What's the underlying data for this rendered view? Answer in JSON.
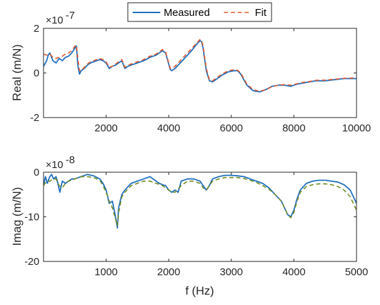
{
  "legend": {
    "measured_label": "Measured",
    "fit_label": "Fit",
    "placement": "top-center"
  },
  "colors": {
    "measured": "#1f6fbf",
    "fit": "#e4572e",
    "fit_imag": "#6f8a1f",
    "axis": "#262626"
  },
  "chart_data": [
    {
      "type": "line",
      "xlabel": "",
      "ylabel": "Real (m/N)",
      "exponent_prefix": "×10",
      "exponent": "-7",
      "xlim": [
        0,
        10000
      ],
      "ylim": [
        -2,
        2
      ],
      "xticks": [
        "2000",
        "4000",
        "6000",
        "8000",
        "10000"
      ],
      "xtick_values": [
        2000,
        4000,
        6000,
        8000,
        10000
      ],
      "yticks": [
        "-2",
        "0",
        "2"
      ],
      "ytick_values": [
        -2,
        0,
        2
      ],
      "grid": false,
      "series": [
        {
          "name": "Measured",
          "style": "solid",
          "x": [
            0,
            100,
            150,
            200,
            300,
            400,
            500,
            600,
            700,
            800,
            900,
            1000,
            1050,
            1100,
            1150,
            1200,
            1300,
            1400,
            1500,
            1600,
            1700,
            1800,
            1900,
            2000,
            2100,
            2200,
            2300,
            2400,
            2500,
            2600,
            2700,
            2800,
            3000,
            3200,
            3400,
            3600,
            3800,
            3900,
            4000,
            4050,
            4100,
            4200,
            4300,
            4500,
            4700,
            4900,
            5000,
            5050,
            5100,
            5150,
            5200,
            5300,
            5400,
            5500,
            5700,
            5900,
            6100,
            6200,
            6300,
            6400,
            6500,
            6700,
            6900,
            7100,
            7300,
            7500,
            7700,
            7900,
            8000,
            8100,
            8300,
            8500,
            8700,
            9000,
            9300,
            9600,
            10000
          ],
          "y": [
            0.3,
            0.55,
            0.8,
            0.9,
            0.55,
            0.45,
            0.65,
            0.55,
            0.7,
            0.75,
            0.9,
            1.1,
            1.2,
            0.3,
            -0.05,
            0.1,
            0.2,
            0.35,
            0.45,
            0.5,
            0.55,
            0.6,
            0.55,
            0.45,
            0.2,
            0.3,
            0.35,
            0.45,
            0.55,
            0.2,
            0.3,
            0.35,
            0.45,
            0.55,
            0.7,
            0.8,
            1.0,
            0.9,
            0.4,
            0.15,
            0.1,
            0.2,
            0.35,
            0.65,
            0.95,
            1.3,
            1.45,
            1.4,
            1.1,
            0.6,
            0.1,
            -0.35,
            -0.4,
            -0.3,
            -0.1,
            0.05,
            0.1,
            0.1,
            -0.05,
            -0.3,
            -0.55,
            -0.8,
            -0.85,
            -0.75,
            -0.6,
            -0.55,
            -0.55,
            -0.6,
            -0.55,
            -0.5,
            -0.45,
            -0.4,
            -0.35,
            -0.35,
            -0.3,
            -0.25,
            -0.25
          ]
        },
        {
          "name": "Fit",
          "style": "dashed",
          "x": [
            0,
            100,
            200,
            300,
            400,
            500,
            600,
            700,
            800,
            900,
            1000,
            1050,
            1100,
            1150,
            1200,
            1300,
            1400,
            1500,
            1600,
            1700,
            1800,
            1900,
            2000,
            2100,
            2200,
            2300,
            2400,
            2500,
            2600,
            2700,
            2800,
            3000,
            3200,
            3400,
            3600,
            3800,
            3900,
            4000,
            4050,
            4100,
            4200,
            4300,
            4500,
            4700,
            4900,
            5000,
            5050,
            5100,
            5150,
            5200,
            5300,
            5400,
            5500,
            5700,
            5900,
            6100,
            6200,
            6300,
            6400,
            6500,
            6700,
            6900,
            7100,
            7300,
            7500,
            7700,
            7900,
            8000,
            8100,
            8300,
            8500,
            8700,
            9000,
            9300,
            9600,
            10000
          ],
          "y": [
            0.85,
            0.8,
            0.85,
            0.7,
            0.65,
            0.7,
            0.75,
            0.85,
            0.9,
            1.0,
            1.2,
            1.25,
            0.6,
            0.1,
            0.1,
            0.25,
            0.4,
            0.5,
            0.55,
            0.6,
            0.65,
            0.6,
            0.5,
            0.25,
            0.3,
            0.4,
            0.5,
            0.6,
            0.25,
            0.35,
            0.4,
            0.5,
            0.6,
            0.75,
            0.85,
            1.05,
            0.95,
            0.45,
            0.2,
            0.2,
            0.3,
            0.45,
            0.75,
            1.05,
            1.35,
            1.5,
            1.45,
            1.2,
            0.7,
            0.2,
            -0.3,
            -0.35,
            -0.25,
            -0.05,
            0.1,
            0.15,
            0.12,
            0.0,
            -0.25,
            -0.5,
            -0.75,
            -0.82,
            -0.75,
            -0.62,
            -0.55,
            -0.52,
            -0.55,
            -0.52,
            -0.48,
            -0.42,
            -0.38,
            -0.33,
            -0.32,
            -0.28,
            -0.24,
            -0.22
          ]
        }
      ]
    },
    {
      "type": "line",
      "xlabel": "f (Hz)",
      "ylabel": "Imag (m/N)",
      "exponent_prefix": "×10",
      "exponent": "-8",
      "xlim": [
        0,
        5000
      ],
      "ylim": [
        -20,
        0
      ],
      "xticks": [
        "1000",
        "2000",
        "3000",
        "4000",
        "5000"
      ],
      "xtick_values": [
        1000,
        2000,
        3000,
        4000,
        5000
      ],
      "yticks": [
        "-20",
        "-10",
        "0"
      ],
      "ytick_values": [
        -20,
        -10,
        0
      ],
      "grid": false,
      "series": [
        {
          "name": "Measured",
          "style": "solid",
          "x": [
            0,
            30,
            60,
            100,
            130,
            160,
            200,
            230,
            260,
            300,
            350,
            400,
            450,
            500,
            600,
            700,
            800,
            900,
            950,
            1000,
            1050,
            1100,
            1150,
            1180,
            1200,
            1250,
            1300,
            1400,
            1500,
            1600,
            1700,
            1750,
            1800,
            1850,
            1900,
            1950,
            2000,
            2050,
            2100,
            2150,
            2200,
            2300,
            2400,
            2500,
            2550,
            2600,
            2650,
            2700,
            2800,
            2900,
            3000,
            3100,
            3200,
            3300,
            3400,
            3500,
            3600,
            3700,
            3800,
            3850,
            3900,
            3950,
            4000,
            4050,
            4100,
            4200,
            4300,
            4400,
            4500,
            4600,
            4700,
            4800,
            4900,
            5000
          ],
          "y": [
            -3,
            -1,
            -2.5,
            -1,
            -0.5,
            -1.5,
            -1,
            -2.5,
            -4.5,
            -2,
            -2.5,
            -2,
            -1.5,
            -1.5,
            -1,
            -0.5,
            -0.8,
            -1.5,
            -2.5,
            -4,
            -7,
            -6.5,
            -10,
            -12.5,
            -8,
            -5,
            -4,
            -2.5,
            -2,
            -1.5,
            -1,
            -1.5,
            -2,
            -2.5,
            -2.8,
            -3,
            -4,
            -4.5,
            -4,
            -4.5,
            -2,
            -1.5,
            -1.5,
            -2,
            -3,
            -4,
            -3,
            -1.5,
            -1,
            -0.7,
            -0.7,
            -0.8,
            -1,
            -1.5,
            -2,
            -2.5,
            -3.5,
            -5,
            -6.5,
            -8,
            -9.5,
            -10,
            -8.5,
            -6,
            -4,
            -2.5,
            -2,
            -1.8,
            -1.8,
            -2,
            -2.2,
            -2.8,
            -4,
            -7
          ]
        },
        {
          "name": "Fit",
          "style": "dashed",
          "x": [
            0,
            50,
            100,
            150,
            200,
            250,
            300,
            350,
            400,
            500,
            600,
            700,
            800,
            900,
            950,
            1000,
            1050,
            1100,
            1150,
            1180,
            1200,
            1250,
            1300,
            1400,
            1500,
            1600,
            1700,
            1800,
            1900,
            1950,
            2000,
            2050,
            2100,
            2200,
            2300,
            2400,
            2500,
            2550,
            2600,
            2650,
            2700,
            2800,
            2900,
            3000,
            3100,
            3200,
            3300,
            3400,
            3500,
            3600,
            3700,
            3800,
            3850,
            3900,
            3950,
            4000,
            4050,
            4100,
            4200,
            4300,
            4400,
            4500,
            4600,
            4700,
            4800,
            4900,
            5000
          ],
          "y": [
            -3,
            -2,
            -2,
            -1.5,
            -1.5,
            -3,
            -3.5,
            -2.5,
            -2,
            -1.5,
            -1,
            -1,
            -1.2,
            -1.8,
            -3,
            -4.5,
            -6.5,
            -8,
            -10.5,
            -12,
            -9,
            -5.5,
            -4.5,
            -3,
            -2.5,
            -2,
            -2,
            -2.5,
            -3,
            -3.5,
            -4,
            -4.5,
            -4.5,
            -3,
            -2,
            -2,
            -2.5,
            -3.5,
            -4,
            -3,
            -2,
            -1.5,
            -1.2,
            -1.2,
            -1.2,
            -1.4,
            -1.8,
            -2.3,
            -3,
            -3.8,
            -5,
            -6.5,
            -8,
            -9.5,
            -10.2,
            -9,
            -6.5,
            -4.5,
            -3.2,
            -2.8,
            -2.6,
            -2.6,
            -2.8,
            -3.2,
            -4,
            -5.5,
            -8.5
          ]
        }
      ]
    }
  ]
}
